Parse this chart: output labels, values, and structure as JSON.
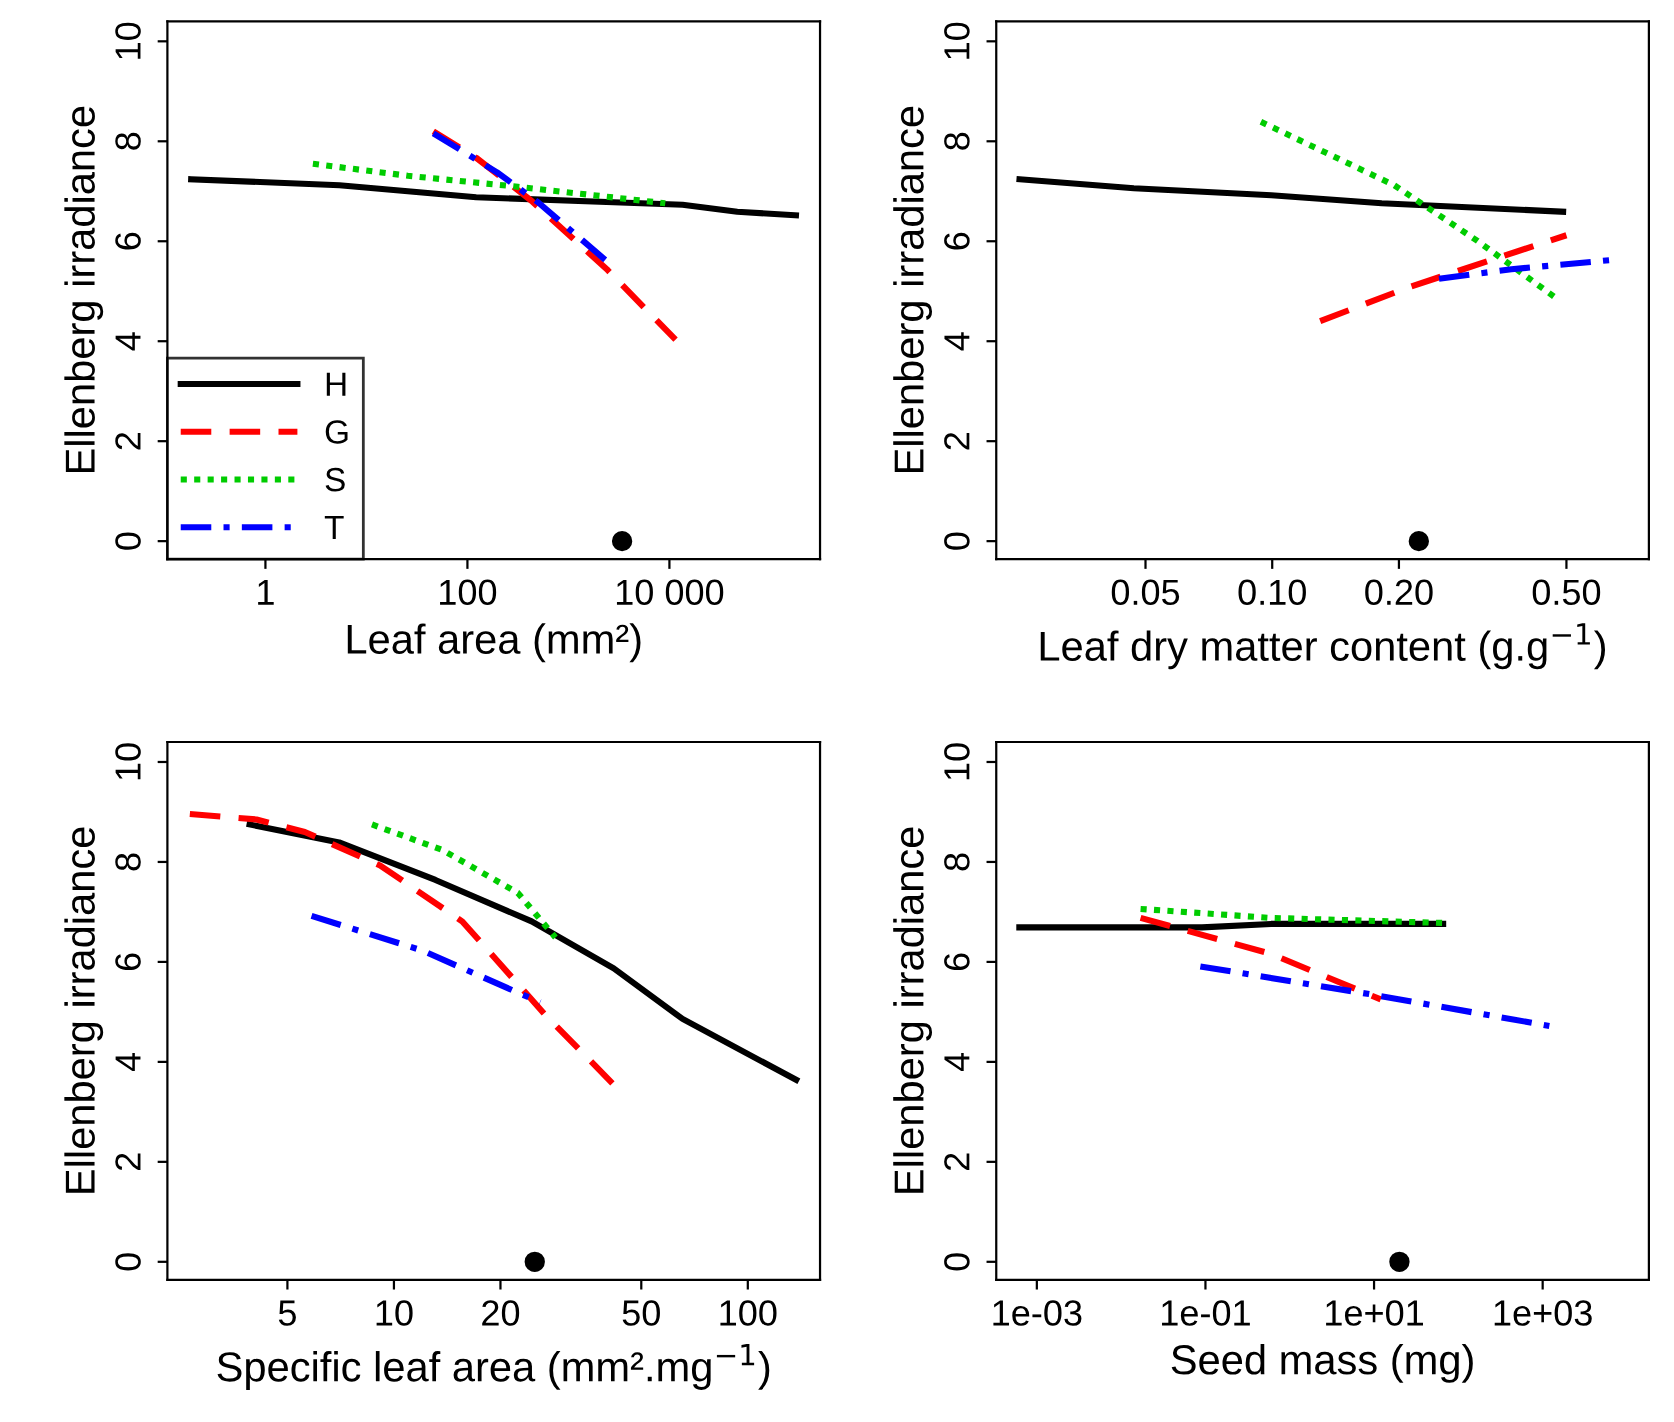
{
  "chart_data": [
    {
      "type": "line",
      "xlabel": "Leaf area (mm²)",
      "ylabel": "Ellenberg irradiance",
      "log": "x",
      "grid": false,
      "legend": "bottom left",
      "marker": "none",
      "xlim": [
        0.107,
        310000
      ],
      "ylim": [
        -0.36,
        10.4
      ],
      "xticks": [
        1,
        100,
        {
          "value": 10000,
          "label": "10 000"
        }
      ],
      "yticks": [
        0,
        2,
        4,
        6,
        8,
        10
      ],
      "series": [
        {
          "name": "H",
          "color": "#000000",
          "line_style": "solid",
          "x": [
            0.184,
            5.4,
            122,
            2800,
            13500,
            47000,
            179000
          ],
          "values": [
            7.24,
            7.12,
            6.88,
            6.78,
            6.73,
            6.59,
            6.52
          ]
        },
        {
          "name": "G",
          "color": "#ff0000",
          "line_style": "dashed",
          "x": [
            46,
            122,
            430,
            2400,
            11500
          ],
          "values": [
            8.2,
            7.67,
            6.81,
            5.44,
            4.03
          ]
        },
        {
          "name": "S",
          "color": "#00cc00",
          "line_style": "dotted",
          "x": [
            2.95,
            25.7,
            316,
            9100
          ],
          "values": [
            7.55,
            7.31,
            7.09,
            6.76
          ]
        },
        {
          "name": "T",
          "color": "#0000ff",
          "line_style": "dashdot",
          "x": [
            46,
            196,
            500,
            2600
          ],
          "values": [
            8.16,
            7.38,
            6.78,
            5.54
          ]
        },
        {
          "type": "scatter",
          "color": "#000000",
          "marker": "circle",
          "x": [
            3400
          ],
          "values": [
            0
          ]
        }
      ]
    },
    {
      "type": "line",
      "xlabel": "Leaf dry matter content (g.g$^{−1}$)",
      "ylabel": "Ellenberg irradiance",
      "log": "x",
      "grid": false,
      "marker": "none",
      "xlim": [
        0.0221,
        0.785
      ],
      "ylim": [
        -0.36,
        10.4
      ],
      "xticks": [
        0.05,
        {
          "value": 0.1,
          "label": "0.10"
        },
        {
          "value": 0.2,
          "label": "0.20"
        },
        {
          "value": 0.5,
          "label": "0.50"
        }
      ],
      "yticks": [
        0,
        2,
        4,
        6,
        8,
        10
      ],
      "series": [
        {
          "color": "#000000",
          "line_style": "solid",
          "x": [
            0.0251,
            0.0469,
            0.0995,
            0.182,
            0.491
          ],
          "values": [
            7.24,
            7.06,
            6.92,
            6.76,
            6.59
          ]
        },
        {
          "color": "#ff0000",
          "line_style": "dashed",
          "x": [
            0.13,
            0.211,
            0.5
          ],
          "values": [
            4.4,
            5.08,
            6.12
          ]
        },
        {
          "color": "#00cc00",
          "line_style": "dotted",
          "x": [
            0.094,
            0.195,
            0.307,
            0.473
          ],
          "values": [
            8.39,
            7.12,
            6.01,
            4.86
          ]
        },
        {
          "color": "#0000ff",
          "line_style": "dashdot",
          "x": [
            0.249,
            0.37,
            0.65
          ],
          "values": [
            5.25,
            5.44,
            5.63
          ]
        },
        {
          "type": "scatter",
          "color": "#000000",
          "marker": "circle",
          "x": [
            0.223
          ],
          "values": [
            0
          ]
        }
      ]
    },
    {
      "type": "line",
      "xlabel": "Specific leaf area (mm².mg$^{−1}$)",
      "ylabel": "Ellenberg irradiance",
      "log": "x",
      "grid": false,
      "marker": "none",
      "xlim": [
        2.29,
        160
      ],
      "ylim": [
        -0.36,
        10.4
      ],
      "xticks": [
        5,
        10,
        20,
        50,
        100
      ],
      "yticks": [
        0,
        2,
        4,
        6,
        8,
        10
      ],
      "series": [
        {
          "color": "#000000",
          "line_style": "solid",
          "x": [
            3.91,
            7.0,
            13.1,
            24.5,
            41.8,
            65.4,
            137
          ],
          "values": [
            8.75,
            8.39,
            7.64,
            6.81,
            5.87,
            4.86,
            3.64
          ]
        },
        {
          "color": "#ff0000",
          "line_style": "dashed",
          "x": [
            2.65,
            4.09,
            5.6,
            9.14,
            15.6,
            26.7,
            42.4
          ],
          "values": [
            8.96,
            8.85,
            8.6,
            7.93,
            6.81,
            4.95,
            3.5
          ]
        },
        {
          "color": "#00cc00",
          "line_style": "dotted",
          "x": [
            8.67,
            13.7,
            22.4,
            28.6
          ],
          "values": [
            8.75,
            8.24,
            7.38,
            6.49
          ]
        },
        {
          "color": "#0000ff",
          "line_style": "dashdot",
          "x": [
            5.85,
            12.0,
            25.9
          ],
          "values": [
            6.92,
            6.23,
            5.19
          ]
        },
        {
          "type": "scatter",
          "color": "#000000",
          "marker": "circle",
          "x": [
            25.0
          ],
          "values": [
            0
          ]
        }
      ]
    },
    {
      "type": "line",
      "xlabel": "Seed mass (mg)",
      "ylabel": "Ellenberg irradiance",
      "log": "x",
      "grid": false,
      "marker": "none",
      "xlim": [
        0.00033,
        18200
      ],
      "ylim": [
        -0.36,
        10.4
      ],
      "xticks": [
        {
          "value": 0.001,
          "label": "1e-03"
        },
        {
          "value": 0.1,
          "label": "1e-01"
        },
        {
          "value": 10,
          "label": "1e+01"
        },
        {
          "value": 1000,
          "label": "1e+03"
        }
      ],
      "yticks": [
        0,
        2,
        4,
        6,
        8,
        10
      ],
      "series": [
        {
          "color": "#000000",
          "line_style": "solid",
          "x": [
            0.00062,
            0.091,
            0.6,
            66
          ],
          "values": [
            6.69,
            6.69,
            6.76,
            6.76
          ]
        },
        {
          "color": "#ff0000",
          "line_style": "dashed",
          "x": [
            0.017,
            0.6,
            12
          ],
          "values": [
            6.88,
            6.16,
            5.25
          ]
        },
        {
          "color": "#00cc00",
          "line_style": "dotted",
          "x": [
            0.017,
            0.6,
            66
          ],
          "values": [
            7.06,
            6.88,
            6.78
          ]
        },
        {
          "color": "#0000ff",
          "line_style": "dashdot",
          "x": [
            0.087,
            10,
            1200
          ],
          "values": [
            5.91,
            5.34,
            4.72
          ]
        },
        {
          "type": "scatter",
          "color": "#000000",
          "marker": "circle",
          "x": [
            20
          ],
          "values": [
            0
          ]
        }
      ]
    }
  ]
}
